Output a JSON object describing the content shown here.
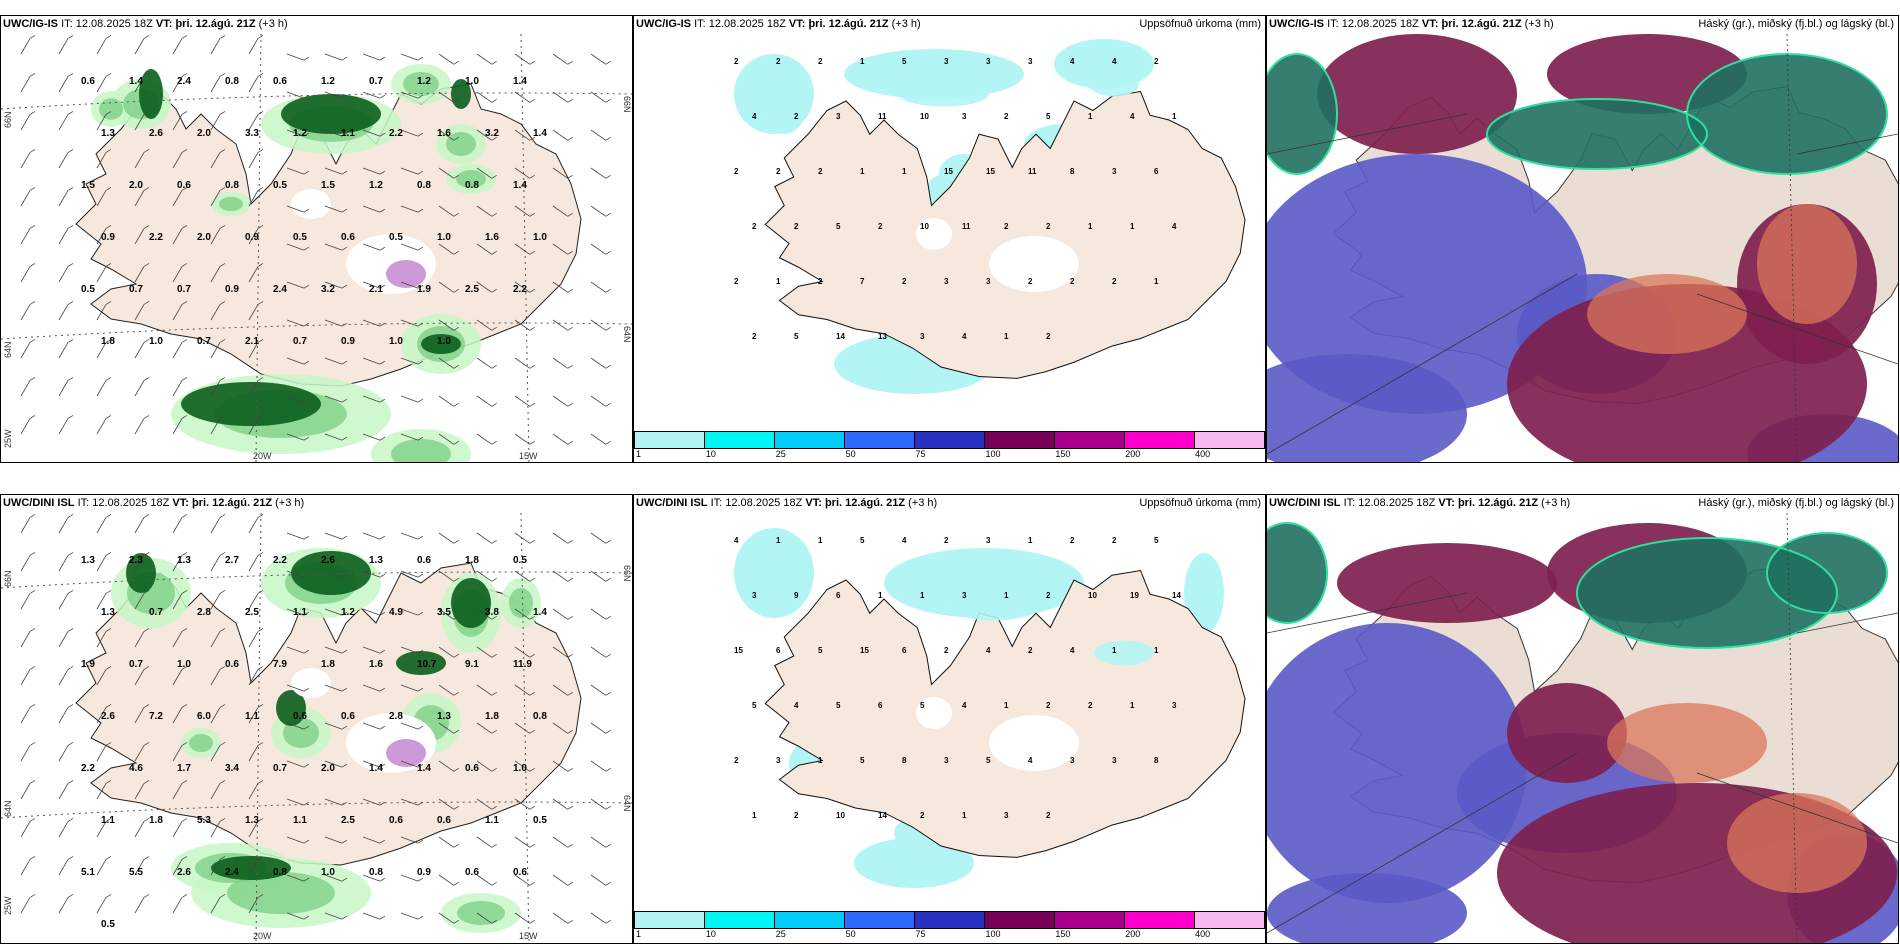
{
  "rows": [
    {
      "model": "UWC/IG-IS",
      "init_label": "IT:",
      "init_time": "12.08.2025 18Z",
      "valid_label": "VT:",
      "valid_time": "þri. 12.ágú. 21Z",
      "lead": "(+3 h)",
      "panel1_values": [
        "0.6",
        "1.4",
        "2.4",
        "0.8",
        "0.6",
        "1.2",
        "0.7",
        "1.2",
        "1.0",
        "1.4",
        "1.3",
        "2.6",
        "2.0",
        "3.3",
        "1.2",
        "1.1",
        "2.2",
        "1.6",
        "3.2",
        "1.4",
        "1.5",
        "2.0",
        "0.6",
        "0.8",
        "0.5",
        "1.5",
        "1.2",
        "0.8",
        "0.8",
        "1.4",
        "0.9",
        "2.2",
        "2.0",
        "0.9",
        "0.5",
        "0.6",
        "0.5",
        "1.0",
        "1.6",
        "1.0",
        "0.5",
        "0.7",
        "0.7",
        "0.9",
        "2.4",
        "3.2",
        "2.1",
        "1.9",
        "2.5",
        "2.2",
        "1.8",
        "1.0",
        "0.7",
        "2.1",
        "0.7",
        "0.9",
        "1.0",
        "1.0"
      ],
      "panel2_values": [
        "2",
        "2",
        "2",
        "1",
        "5",
        "3",
        "3",
        "3",
        "4",
        "4",
        "2",
        "4",
        "2",
        "3",
        "11",
        "10",
        "3",
        "2",
        "5",
        "1",
        "4",
        "1",
        "2",
        "2",
        "2",
        "1",
        "1",
        "15",
        "15",
        "11",
        "8",
        "3",
        "6",
        "2",
        "2",
        "5",
        "2",
        "10",
        "11",
        "2",
        "2",
        "1",
        "1",
        "4",
        "2",
        "1",
        "2",
        "7",
        "2",
        "3",
        "3",
        "2",
        "2",
        "2",
        "1",
        "2",
        "5",
        "14",
        "13",
        "3",
        "4",
        "1",
        "2"
      ],
      "panel1_extra": []
    },
    {
      "model": "UWC/DINI ISL",
      "init_label": "IT:",
      "init_time": "12.08.2025 18Z",
      "valid_label": "VT:",
      "valid_time": "þri. 12.ágú. 21Z",
      "lead": "(+3 h)",
      "panel1_values": [
        "1.3",
        "2.3",
        "1.3",
        "2.7",
        "2.2",
        "2.6",
        "1.3",
        "0.6",
        "1.8",
        "0.5",
        "1.3",
        "0.7",
        "2.8",
        "2.5",
        "1.1",
        "1.2",
        "4.9",
        "3.5",
        "3.8",
        "1.4",
        "1.9",
        "0.7",
        "1.0",
        "0.6",
        "7.9",
        "1.8",
        "1.6",
        "10.7",
        "9.1",
        "11.9",
        "2.6",
        "7.2",
        "6.0",
        "1.1",
        "0.6",
        "0.6",
        "2.8",
        "1.3",
        "1.8",
        "0.8",
        "2.2",
        "4.6",
        "1.7",
        "3.4",
        "0.7",
        "2.0",
        "1.4",
        "1.4",
        "0.6",
        "1.0",
        "1.1",
        "1.8",
        "5.3",
        "1.3",
        "1.1",
        "2.5",
        "0.6",
        "0.6",
        "1.1",
        "0.5",
        "5.1",
        "5.5",
        "2.6",
        "2.4",
        "0.8",
        "1.0",
        "0.8",
        "0.9",
        "0.6",
        "0.6",
        "0.5"
      ],
      "panel2_values": [
        "4",
        "1",
        "1",
        "5",
        "4",
        "2",
        "3",
        "1",
        "2",
        "2",
        "5",
        "3",
        "9",
        "6",
        "1",
        "1",
        "3",
        "1",
        "2",
        "10",
        "19",
        "14",
        "15",
        "6",
        "5",
        "15",
        "6",
        "2",
        "4",
        "2",
        "4",
        "1",
        "1",
        "5",
        "4",
        "5",
        "6",
        "5",
        "4",
        "1",
        "2",
        "2",
        "1",
        "3",
        "2",
        "3",
        "1",
        "5",
        "8",
        "3",
        "5",
        "4",
        "3",
        "3",
        "8",
        "1",
        "2",
        "10",
        "14",
        "2",
        "1",
        "3",
        "2"
      ]
    }
  ],
  "panel2_title": "Uppsöfnuð úrkoma (mm)",
  "panel3_title": "Háský (gr.), miðský (fj.bl.) og lágský (bl.)",
  "axis_labels": {
    "lat_66": "66N",
    "lat_64": "64N",
    "lon_25": "25W",
    "lon_20": "20W",
    "lon_15": "15W"
  },
  "colorbar": {
    "ticks": [
      "1",
      "10",
      "25",
      "50",
      "75",
      "100",
      "150",
      "200",
      "400"
    ],
    "colors": [
      "#b3f5f5",
      "#00f5f5",
      "#00cdf5",
      "#2f6aff",
      "#2a31c2",
      "#780058",
      "#a8008c",
      "#ff00cc",
      "#f7b8f2"
    ]
  },
  "colors": {
    "land": "#f6e8dc",
    "precip_light": "#c7f7c7",
    "precip_mid": "#7ecf86",
    "precip_dark": "#0b5e1c",
    "cloud_high": "#1f7060",
    "cloud_mid": "#7e1f4e",
    "cloud_low": "#5a5ac8"
  }
}
